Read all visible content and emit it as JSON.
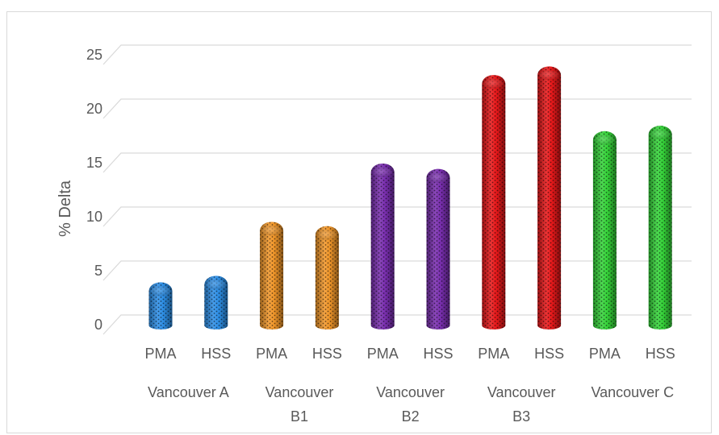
{
  "chart_data": {
    "type": "bar",
    "style": "3d-cylinder",
    "title": "",
    "xlabel": "",
    "ylabel": "% Delta",
    "ylim": [
      0,
      25
    ],
    "yticks": [
      0,
      5,
      10,
      15,
      20,
      25
    ],
    "grid": true,
    "legend": "none",
    "groups": [
      {
        "label_lines": [
          "Vancouver A"
        ],
        "color": "#2e8fe6"
      },
      {
        "label_lines": [
          "Vancouver",
          "B1"
        ],
        "color": "#f0962a"
      },
      {
        "label_lines": [
          "Vancouver",
          "B2"
        ],
        "color": "#7a2fb0"
      },
      {
        "label_lines": [
          "Vancouver",
          "B3"
        ],
        "color": "#e8191b"
      },
      {
        "label_lines": [
          "Vancouver C"
        ],
        "color": "#36d43a"
      }
    ],
    "categories": [
      "PMA",
      "HSS",
      "PMA",
      "HSS",
      "PMA",
      "HSS",
      "PMA",
      "HSS",
      "PMA",
      "HSS"
    ],
    "values": [
      3.6,
      4.2,
      9.2,
      8.8,
      14.6,
      14.1,
      22.8,
      23.6,
      17.6,
      18.1
    ]
  }
}
